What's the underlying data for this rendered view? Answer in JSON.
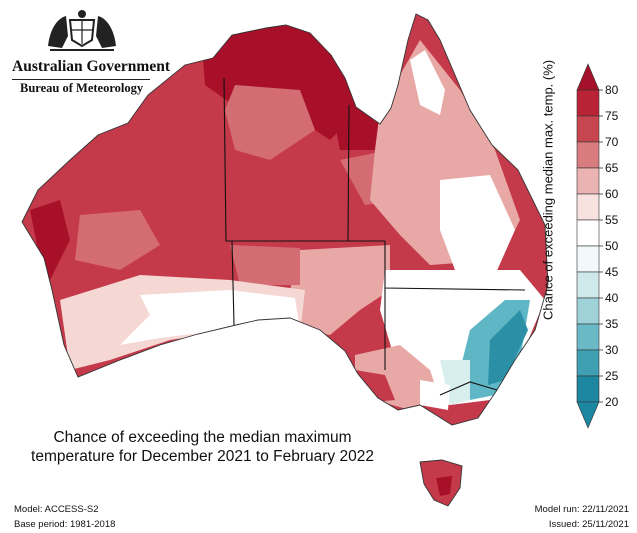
{
  "header": {
    "org": "Australian Government",
    "agency": "Bureau of Meteorology",
    "crest_icon": "coat-of-arms-icon"
  },
  "map": {
    "title_line1": "Chance of exceeding the median maximum",
    "title_line2": "temperature for December 2021 to February 2022",
    "colors": {
      "dark_red": "#a8102a",
      "red": "#c53a4a",
      "mid_red": "#d46c74",
      "pink": "#e8a9a6",
      "light_pink": "#f5d8d3",
      "white": "#ffffff",
      "pale_teal": "#d9efee",
      "teal": "#5fb6c4",
      "dark_teal": "#2b90a6"
    }
  },
  "legend": {
    "label": "Chance of exceeding median max. temp. (%)",
    "ticks": [
      "80",
      "75",
      "70",
      "65",
      "60",
      "55",
      "50",
      "45",
      "40",
      "35",
      "30",
      "25",
      "20"
    ],
    "bands": [
      "#a4112b",
      "#b82436",
      "#c8464f",
      "#d97c80",
      "#ebb3b1",
      "#f8e2df",
      "#ffffff",
      "#f2f9f9",
      "#cfe9ea",
      "#9fd2d9",
      "#6bb8c6",
      "#3fa0b4",
      "#1d86a0"
    ]
  },
  "footer": {
    "model": "Model: ACCESS-S2",
    "base_period": "Base period: 1981-2018",
    "model_run": "Model run: 22/11/2021",
    "issued": "Issued: 25/11/2021"
  }
}
